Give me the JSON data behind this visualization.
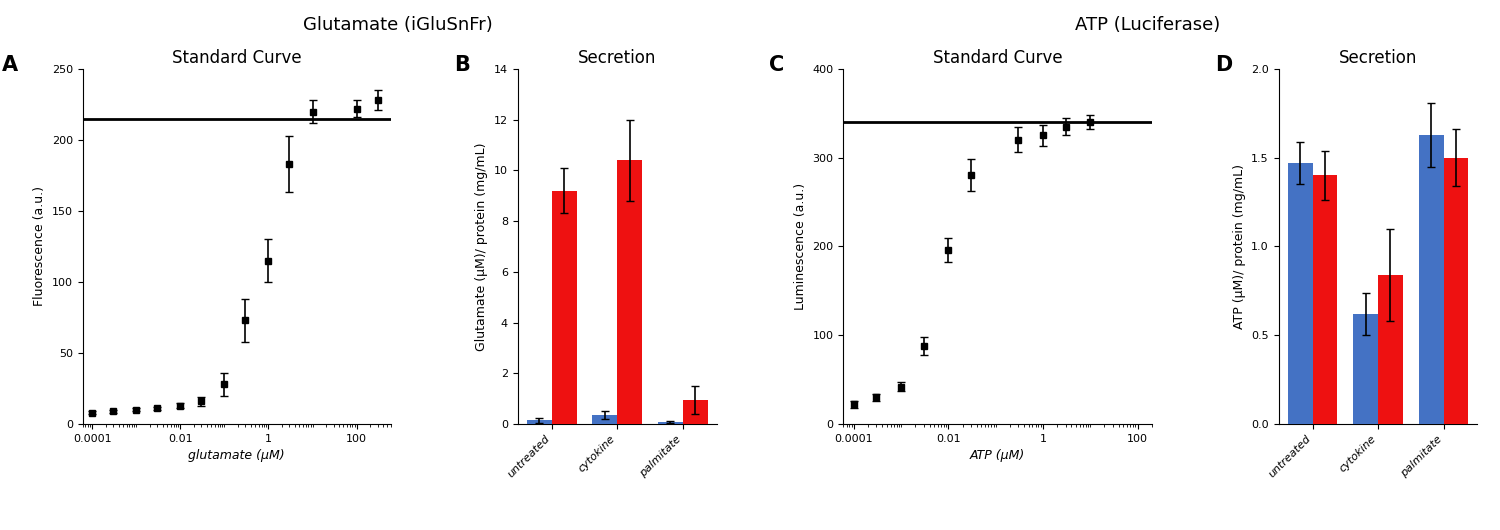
{
  "title_left": "Glutamate (iGluSnFr)",
  "title_right": "ATP (Luciferase)",
  "panel_A_title": "Standard Curve",
  "panel_A_xlabel": "glutamate (μM)",
  "panel_A_ylabel": "Fluorescence (a.u.)",
  "panel_A_ylim": [
    0,
    250
  ],
  "panel_A_xlim": [
    6e-05,
    600
  ],
  "panel_A_xticks": [
    0.0001,
    0.01,
    1,
    100
  ],
  "panel_A_xticklabels": [
    "0.0001",
    "0.01",
    "1",
    "100"
  ],
  "panel_A_x": [
    0.0001,
    0.0003,
    0.001,
    0.003,
    0.01,
    0.03,
    0.1,
    0.3,
    1,
    3,
    10,
    100,
    300
  ],
  "panel_A_y": [
    8,
    9,
    10,
    11,
    13,
    16,
    28,
    73,
    115,
    183,
    220,
    222,
    228
  ],
  "panel_A_yerr": [
    1,
    1,
    1,
    1,
    2,
    3,
    8,
    15,
    15,
    20,
    8,
    6,
    7
  ],
  "panel_B_title": "Secretion",
  "panel_B_ylabel": "Glutamate (μM)/ protein (mg/mL)",
  "panel_B_ylim": [
    0,
    14
  ],
  "panel_B_yticks": [
    0,
    2,
    4,
    6,
    8,
    10,
    12,
    14
  ],
  "panel_B_categories": [
    "untreated",
    "cytokine",
    "palmitate"
  ],
  "panel_B_blue_vals": [
    0.15,
    0.35,
    0.08
  ],
  "panel_B_blue_errs": [
    0.1,
    0.15,
    0.05
  ],
  "panel_B_red_vals": [
    9.2,
    10.4,
    0.95
  ],
  "panel_B_red_errs": [
    0.9,
    1.6,
    0.55
  ],
  "panel_C_title": "Standard Curve",
  "panel_C_xlabel": "ATP (μM)",
  "panel_C_ylabel": "Luminescence (a.u.)",
  "panel_C_ylim": [
    0,
    400
  ],
  "panel_C_xlim": [
    6e-05,
    200
  ],
  "panel_C_xticks": [
    0.0001,
    0.01,
    1,
    100
  ],
  "panel_C_xticklabels": [
    "0.0001",
    "0.01",
    "1",
    "100"
  ],
  "panel_C_x": [
    0.0001,
    0.0003,
    0.001,
    0.003,
    0.01,
    0.03,
    0.3,
    1,
    3,
    10
  ],
  "panel_C_y": [
    22,
    30,
    42,
    88,
    196,
    280,
    320,
    325,
    335,
    340
  ],
  "panel_C_yerr": [
    4,
    4,
    5,
    10,
    14,
    18,
    14,
    12,
    10,
    8
  ],
  "panel_D_title": "Secretion",
  "panel_D_ylabel": "ATP (μM)/ protein (mg/mL)",
  "panel_D_ylim": [
    0.0,
    2.0
  ],
  "panel_D_yticks": [
    0.0,
    0.5,
    1.0,
    1.5,
    2.0
  ],
  "panel_D_categories": [
    "untreated",
    "cytokine",
    "palmitate"
  ],
  "panel_D_blue_vals": [
    1.47,
    0.62,
    1.63
  ],
  "panel_D_blue_errs": [
    0.12,
    0.12,
    0.18
  ],
  "panel_D_red_vals": [
    1.4,
    0.84,
    1.5
  ],
  "panel_D_red_errs": [
    0.14,
    0.26,
    0.16
  ],
  "bar_blue": "#4472C4",
  "bar_red": "#EE1111",
  "line_color": "#000000",
  "marker_color": "#000000",
  "bg_color": "#FFFFFF",
  "label_fontsize": 9,
  "title_fontsize": 12,
  "panel_label_fontsize": 15
}
